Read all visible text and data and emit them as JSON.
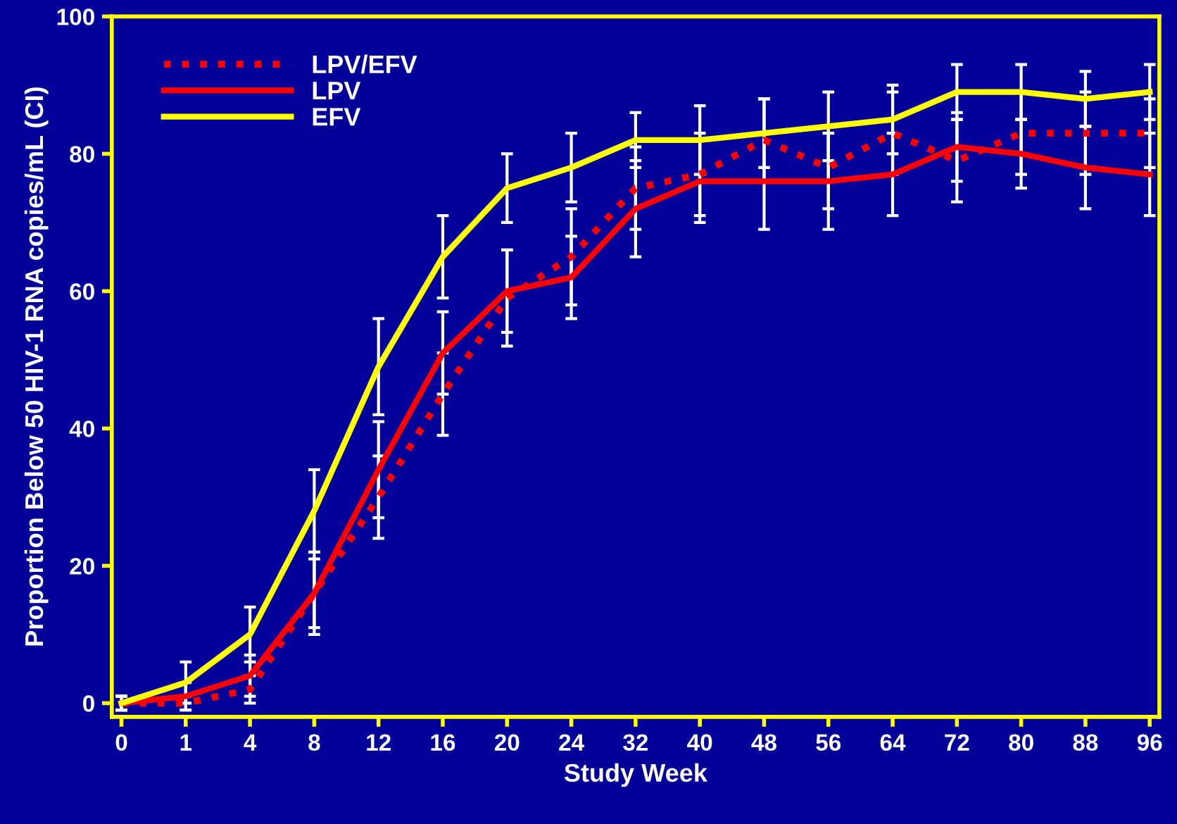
{
  "chart_data": {
    "type": "line",
    "xlabel": "Study Week",
    "ylabel": "Proportion Below 50 HIV-1 RNA copies/mL (CI)",
    "categories": [
      "0",
      "1",
      "4",
      "8",
      "12",
      "16",
      "20",
      "24",
      "32",
      "40",
      "48",
      "56",
      "64",
      "72",
      "80",
      "88",
      "96"
    ],
    "ylim": [
      -2,
      100
    ],
    "yticks": [
      0,
      20,
      40,
      60,
      80,
      100
    ],
    "grid": false,
    "legend": "top left",
    "marker": "none",
    "series": [
      {
        "name": "LPV/EFV",
        "color": "#ff0000",
        "line_style": "dotted",
        "values": [
          0,
          0,
          2,
          16,
          30,
          45,
          59,
          65,
          75,
          77,
          82,
          78,
          83,
          79,
          83,
          83,
          83
        ],
        "errors": [
          1,
          1,
          2,
          5,
          6,
          6,
          7,
          7,
          6,
          6,
          6,
          6,
          6,
          6,
          6,
          6,
          5
        ]
      },
      {
        "name": "LPV",
        "color": "#ff0000",
        "line_style": "solid",
        "values": [
          0,
          1,
          4,
          16,
          34,
          51,
          60,
          62,
          72,
          76,
          76,
          76,
          77,
          81,
          80,
          78,
          77
        ],
        "errors": [
          1,
          2,
          3,
          6,
          7,
          6,
          6,
          6,
          7,
          6,
          7,
          7,
          6,
          5,
          5,
          6,
          6
        ]
      },
      {
        "name": "EFV",
        "color": "#ffff00",
        "line_style": "solid",
        "values": [
          0,
          3,
          10,
          28,
          49,
          65,
          75,
          78,
          82,
          82,
          83,
          84,
          85,
          89,
          89,
          88,
          89
        ],
        "errors": [
          1,
          3,
          4,
          6,
          7,
          6,
          5,
          5,
          4,
          5,
          5,
          5,
          5,
          4,
          4,
          4,
          4
        ]
      }
    ]
  }
}
